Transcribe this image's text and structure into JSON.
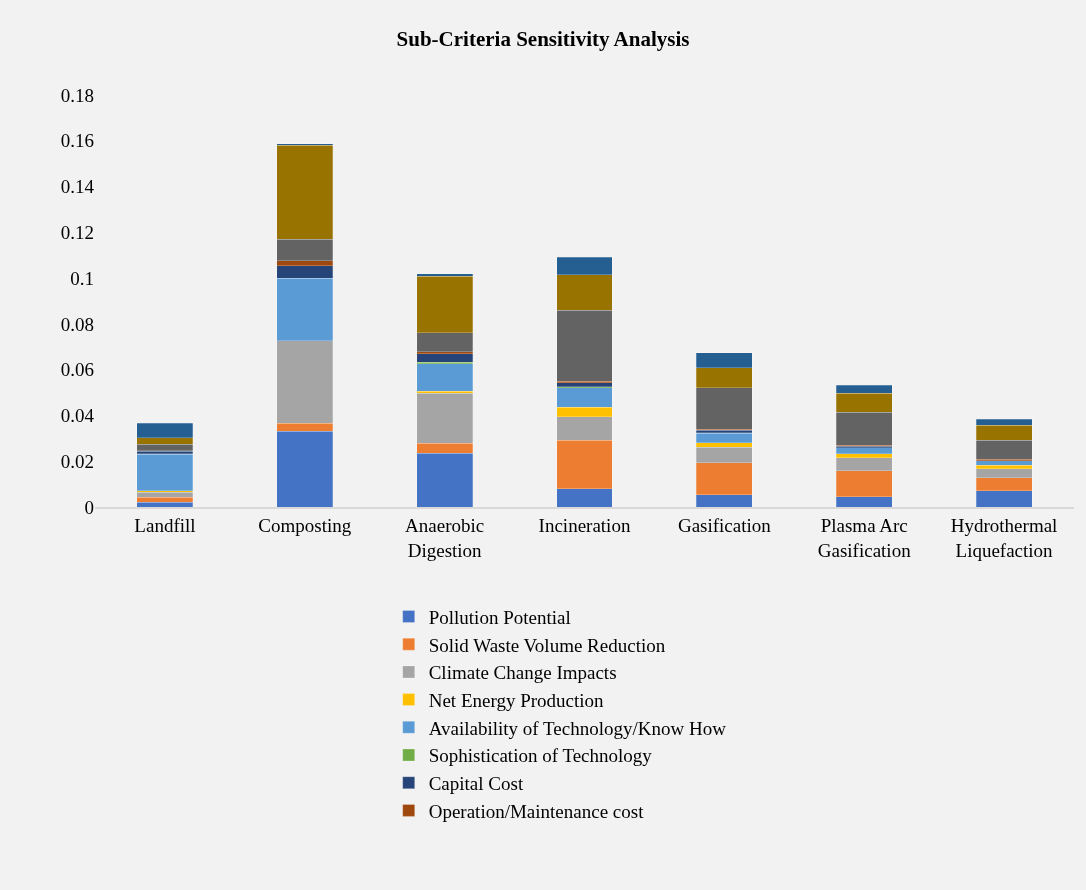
{
  "chart_data": {
    "type": "bar",
    "stacked": true,
    "title": "Sub-Criteria Sensitivity Analysis",
    "categories": [
      "Landfill",
      "Composting",
      "Anaerobic Digestion",
      "Incineration",
      "Gasification",
      "Plasma Arc Gasification",
      "Hydrothermal Liquefaction"
    ],
    "series": [
      {
        "name": "Pollution Potential",
        "color": "#4472c4",
        "values": [
          0.002,
          0.0332,
          0.0234,
          0.008,
          0.0054,
          0.0045,
          0.007
        ]
      },
      {
        "name": "Solid Waste Volume Reduction",
        "color": "#ed7d31",
        "values": [
          0.0022,
          0.0034,
          0.0045,
          0.0211,
          0.014,
          0.0114,
          0.0058
        ]
      },
      {
        "name": "Climate Change Impacts",
        "color": "#a5a5a5",
        "values": [
          0.0022,
          0.0361,
          0.0218,
          0.0103,
          0.0068,
          0.0057,
          0.0039
        ]
      },
      {
        "name": "Net Energy Production",
        "color": "#ffc000",
        "values": [
          0.0007,
          null,
          0.0009,
          0.0041,
          0.0019,
          0.0017,
          0.0015
        ]
      },
      {
        "name": "Availability of Technology/Know How",
        "color": "#5b9bd5",
        "values": [
          0.016,
          0.0273,
          0.0119,
          0.0087,
          0.0041,
          0.0026,
          0.0019
        ]
      },
      {
        "name": "Sophistication of Technology",
        "color": "#70ad47",
        "values": [
          0.0002,
          null,
          0.0007,
          0.0003,
          0.0002,
          null,
          0.0002
        ]
      },
      {
        "name": "Capital Cost",
        "color": "#264478",
        "values": [
          0.0011,
          0.0054,
          0.0037,
          0.0017,
          0.0012,
          0.0006,
          null
        ]
      },
      {
        "name": "Operation/Maintenance cost",
        "color": "#9e480e",
        "values": [
          0.0002,
          0.0022,
          0.001,
          0.0007,
          0.0003,
          0.0004,
          0.0006
        ]
      },
      {
        "color": "#636363",
        "values": [
          0.0028,
          0.0094,
          0.0083,
          0.031,
          0.0182,
          0.0144,
          0.0082
        ]
      },
      {
        "color": "#997300",
        "values": [
          0.0028,
          0.041,
          0.0247,
          0.0156,
          0.0087,
          0.0083,
          0.0067
        ]
      },
      {
        "color": "#255e91",
        "values": [
          0.0064,
          0.0007,
          0.0009,
          0.0076,
          0.0065,
          0.0035,
          0.0025
        ]
      }
    ],
    "ylim": [
      0,
      0.18
    ],
    "yticks": [
      0,
      0.02,
      0.04,
      0.06,
      0.08,
      0.1,
      0.12,
      0.14,
      0.16,
      0.18
    ],
    "grid": false,
    "legend": "bottom"
  }
}
